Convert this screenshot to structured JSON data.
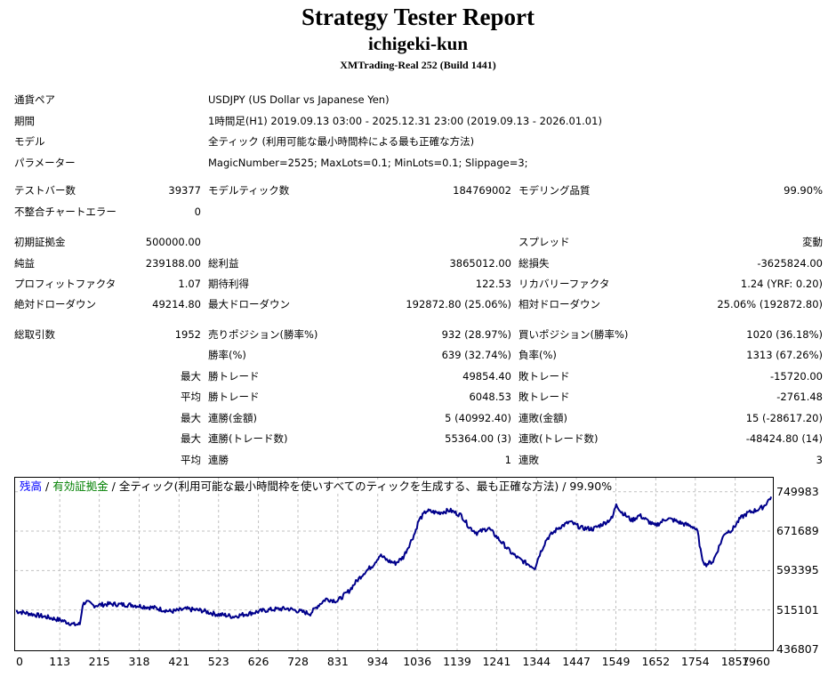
{
  "header": {
    "title": "Strategy Tester Report",
    "ea_name": "ichigeki-kun",
    "server": "XMTrading-Real 252 (Build 1441)"
  },
  "info": {
    "symbol_label": "通貨ペア",
    "symbol_value": "USDJPY (US Dollar vs Japanese Yen)",
    "period_label": "期間",
    "period_value": "1時間足(H1) 2019.09.13 03:00 - 2025.12.31 23:00 (2019.09.13 - 2026.01.01)",
    "model_label": "モデル",
    "model_value": "全ティック (利用可能な最小時間枠による最も正確な方法)",
    "params_label": "パラメーター",
    "params_value": "MagicNumber=2525; MaxLots=0.1; MinLots=0.1; Slippage=3;"
  },
  "stats": {
    "bars_label": "テストバー数",
    "bars_value": "39377",
    "ticks_label": "モデルティック数",
    "ticks_value": "184769002",
    "quality_label": "モデリング品質",
    "quality_value": "99.90%",
    "mismatch_label": "不整合チャートエラー",
    "mismatch_value": "0",
    "deposit_label": "初期証拠金",
    "deposit_value": "500000.00",
    "spread_label": "スプレッド",
    "spread_value": "変動",
    "net_label": "純益",
    "net_value": "239188.00",
    "gross_profit_label": "総利益",
    "gross_profit_value": "3865012.00",
    "gross_loss_label": "総損失",
    "gross_loss_value": "-3625824.00",
    "pf_label": "プロフィットファクタ",
    "pf_value": "1.07",
    "expected_label": "期待利得",
    "expected_value": "122.53",
    "recovery_label": "リカバリーファクタ",
    "recovery_value": "1.24 (YRF: 0.20)",
    "abs_dd_label": "絶対ドローダウン",
    "abs_dd_value": "49214.80",
    "max_dd_label": "最大ドローダウン",
    "max_dd_value": "192872.80 (25.06%)",
    "rel_dd_label": "相対ドローダウン",
    "rel_dd_value": "25.06% (192872.80)",
    "total_trades_label": "総取引数",
    "total_trades_value": "1952",
    "short_label": "売りポジション(勝率%)",
    "short_value": "932 (28.97%)",
    "long_label": "買いポジション(勝率%)",
    "long_value": "1020 (36.18%)",
    "win_pct_label": "勝率(%)",
    "win_pct_value": "639 (32.74%)",
    "loss_pct_label": "負率(%)",
    "loss_pct_value": "1313 (67.26%)",
    "largest_label": "最大",
    "largest_win_label": "勝トレード",
    "largest_win_value": "49854.40",
    "largest_loss_label": "敗トレード",
    "largest_loss_value": "-15720.00",
    "avg_label": "平均",
    "avg_win_label": "勝トレード",
    "avg_win_value": "6048.53",
    "avg_loss_label": "敗トレード",
    "avg_loss_value": "-2761.48",
    "max_consec_label": "最大",
    "consec_wins_money_label": "連勝(金額)",
    "consec_wins_money_value": "5 (40992.40)",
    "consec_losses_money_label": "連敗(金額)",
    "consec_losses_money_value": "15 (-28617.20)",
    "max_consec2_label": "最大",
    "consec_profit_label": "連勝(トレード数)",
    "consec_profit_value": "55364.00 (3)",
    "consec_loss_label": "連敗(トレード数)",
    "consec_loss_value": "-48424.80 (14)",
    "avg_consec_label": "平均",
    "avg_consec_wins_label": "連勝",
    "avg_consec_wins_value": "1",
    "avg_consec_losses_label": "連敗",
    "avg_consec_losses_value": "3"
  },
  "chart_legend": {
    "balance": "残高",
    "sep1": " / ",
    "equity": "有効証拠金",
    "sep2": " / ",
    "model": "全ティック(利用可能な最小時間枠を使いすべてのティックを生成する、最も正確な方法) / 99.90%"
  },
  "chart_data": {
    "type": "line",
    "ylim": [
      436807,
      776000
    ],
    "xlim": [
      0,
      1952
    ],
    "y_ticks": [
      "749983",
      "671689",
      "593395",
      "515101",
      "436807"
    ],
    "y_tick_values": [
      749983,
      671689,
      593395,
      515101,
      436807
    ],
    "x_ticks": [
      "0",
      "113",
      "215",
      "318",
      "421",
      "523",
      "626",
      "728",
      "831",
      "934",
      "1036",
      "1139",
      "1241",
      "1344",
      "1447",
      "1549",
      "1652",
      "1754",
      "1857",
      "1960"
    ],
    "x_tick_values": [
      0,
      113,
      215,
      318,
      421,
      523,
      626,
      728,
      831,
      934,
      1036,
      1139,
      1241,
      1344,
      1447,
      1549,
      1652,
      1754,
      1857,
      1960
    ],
    "grid": true,
    "series": [
      {
        "name": "残高",
        "color": "#00008b",
        "x": [
          0,
          40,
          80,
          120,
          150,
          165,
          172,
          180,
          200,
          240,
          300,
          360,
          400,
          440,
          480,
          520,
          540,
          560,
          600,
          640,
          660,
          700,
          760,
          780,
          800,
          830,
          860,
          880,
          900,
          920,
          940,
          960,
          980,
          1000,
          1030,
          1040,
          1060,
          1090,
          1120,
          1150,
          1170,
          1190,
          1220,
          1250,
          1280,
          1300,
          1320,
          1340,
          1350,
          1370,
          1400,
          1430,
          1460,
          1490,
          1520,
          1540,
          1550,
          1560,
          1590,
          1610,
          1650,
          1680,
          1700,
          1720,
          1750,
          1760,
          1770,
          1780,
          1800,
          1830,
          1850,
          1870,
          1890,
          1910,
          1930,
          1950
        ],
        "y": [
          513000,
          507000,
          501000,
          494000,
          486000,
          487000,
          525000,
          532000,
          524000,
          527000,
          525000,
          519000,
          512000,
          517000,
          514000,
          506000,
          505000,
          502000,
          508000,
          514000,
          516000,
          518000,
          508000,
          524000,
          537000,
          533000,
          553000,
          573000,
          590000,
          603000,
          624000,
          613000,
          608000,
          620000,
          668000,
          693000,
          712000,
          708000,
          713000,
          703000,
          680000,
          668000,
          678000,
          653000,
          628000,
          616000,
          607000,
          599000,
          622000,
          656000,
          678000,
          690000,
          678000,
          676000,
          688000,
          698000,
          727000,
          712000,
          693000,
          703000,
          682000,
          697000,
          693000,
          687000,
          680000,
          670000,
          622000,
          605000,
          612000,
          668000,
          675000,
          697000,
          708000,
          713000,
          720000,
          740000
        ]
      }
    ]
  }
}
